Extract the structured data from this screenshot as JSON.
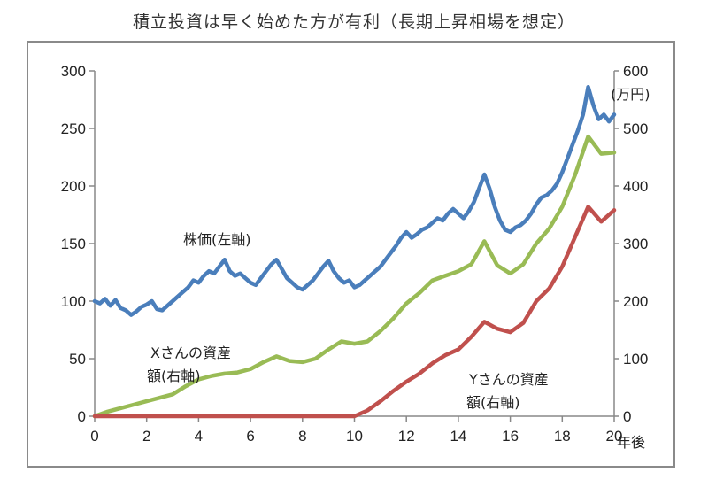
{
  "chart_data": {
    "type": "line",
    "title": "積立投資は早く始めた方が有利（長期上昇相場を想定）",
    "x_unit": "年後",
    "y2_unit": "(万円)",
    "xlim": [
      0,
      20
    ],
    "ylim_left": [
      0,
      300
    ],
    "ylim_right": [
      0,
      600
    ],
    "x_ticks": [
      0,
      2,
      4,
      6,
      8,
      10,
      12,
      14,
      16,
      18,
      20
    ],
    "y_ticks_left": [
      0,
      50,
      100,
      150,
      200,
      250,
      300
    ],
    "y_ticks_right": [
      0,
      100,
      200,
      300,
      400,
      500,
      600
    ],
    "grid": false,
    "series": [
      {
        "name": "株価(左軸)",
        "axis": "left",
        "color": "#4a7ebb",
        "x": [
          0,
          0.2,
          0.4,
          0.6,
          0.8,
          1.0,
          1.2,
          1.4,
          1.6,
          1.8,
          2.0,
          2.2,
          2.4,
          2.6,
          2.8,
          3.0,
          3.2,
          3.4,
          3.6,
          3.8,
          4.0,
          4.2,
          4.4,
          4.6,
          4.8,
          5.0,
          5.2,
          5.4,
          5.6,
          5.8,
          6.0,
          6.2,
          6.4,
          6.6,
          6.8,
          7.0,
          7.2,
          7.4,
          7.6,
          7.8,
          8.0,
          8.2,
          8.4,
          8.6,
          8.8,
          9.0,
          9.2,
          9.4,
          9.6,
          9.8,
          10.0,
          10.2,
          10.4,
          10.6,
          10.8,
          11.0,
          11.2,
          11.4,
          11.6,
          11.8,
          12.0,
          12.2,
          12.4,
          12.6,
          12.8,
          13.0,
          13.2,
          13.4,
          13.6,
          13.8,
          14.0,
          14.2,
          14.4,
          14.6,
          14.8,
          15.0,
          15.2,
          15.4,
          15.6,
          15.8,
          16.0,
          16.2,
          16.4,
          16.6,
          16.8,
          17.0,
          17.2,
          17.4,
          17.6,
          17.8,
          18.0,
          18.2,
          18.4,
          18.6,
          18.8,
          19.0,
          19.2,
          19.4,
          19.6,
          19.8,
          20.0
        ],
        "values": [
          100,
          98,
          102,
          96,
          101,
          94,
          92,
          88,
          91,
          95,
          97,
          100,
          93,
          92,
          96,
          100,
          104,
          108,
          112,
          118,
          116,
          122,
          126,
          124,
          130,
          136,
          126,
          122,
          124,
          120,
          116,
          114,
          120,
          126,
          132,
          136,
          128,
          120,
          116,
          112,
          110,
          114,
          118,
          124,
          130,
          135,
          126,
          120,
          116,
          118,
          112,
          114,
          118,
          122,
          126,
          130,
          136,
          142,
          148,
          155,
          160,
          155,
          158,
          162,
          164,
          168,
          172,
          170,
          176,
          180,
          176,
          172,
          178,
          186,
          198,
          210,
          198,
          182,
          170,
          162,
          160,
          164,
          166,
          170,
          176,
          184,
          190,
          192,
          196,
          202,
          212,
          224,
          236,
          248,
          262,
          286,
          270,
          258,
          262,
          256,
          262
        ]
      },
      {
        "name": "Xさんの資産額(右軸)",
        "axis": "right",
        "color": "#99bb55",
        "x": [
          0,
          0.5,
          1.0,
          1.5,
          2.0,
          2.5,
          3.0,
          3.5,
          4.0,
          4.5,
          5.0,
          5.5,
          6.0,
          6.5,
          7.0,
          7.5,
          8.0,
          8.5,
          9.0,
          9.5,
          10.0,
          10.5,
          11.0,
          11.5,
          12.0,
          12.5,
          13.0,
          13.5,
          14.0,
          14.5,
          15.0,
          15.5,
          16.0,
          16.5,
          17.0,
          17.5,
          18.0,
          18.5,
          19.0,
          19.5,
          20.0
        ],
        "values": [
          0,
          8,
          14,
          20,
          26,
          32,
          38,
          52,
          64,
          70,
          74,
          76,
          82,
          94,
          104,
          96,
          94,
          100,
          116,
          130,
          126,
          130,
          148,
          170,
          196,
          214,
          236,
          244,
          252,
          264,
          304,
          262,
          248,
          264,
          300,
          326,
          364,
          420,
          486,
          456,
          458
        ]
      },
      {
        "name": "Yさんの資産額(右軸)",
        "axis": "right",
        "color": "#c0504d",
        "x": [
          0,
          1,
          2,
          3,
          4,
          5,
          6,
          7,
          8,
          9,
          10.0,
          10.5,
          11.0,
          11.5,
          12.0,
          12.5,
          13.0,
          13.5,
          14.0,
          14.5,
          15.0,
          15.5,
          16.0,
          16.5,
          17.0,
          17.5,
          18.0,
          18.5,
          19.0,
          19.5,
          20.0
        ],
        "values": [
          0,
          0,
          0,
          0,
          0,
          0,
          0,
          0,
          0,
          0,
          0,
          10,
          26,
          44,
          60,
          74,
          92,
          106,
          116,
          138,
          164,
          152,
          146,
          162,
          200,
          222,
          260,
          312,
          364,
          338,
          358
        ]
      }
    ]
  }
}
